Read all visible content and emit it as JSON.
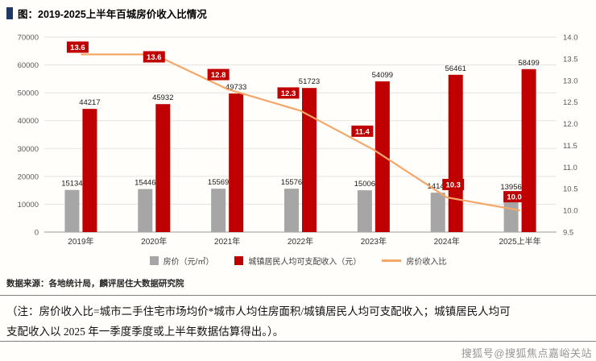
{
  "chart_data": {
    "type": "bar",
    "subtype": "bar-line-combo",
    "title": "图：2019-2025上半年百城房价收入比情况",
    "categories": [
      "2019年",
      "2020年",
      "2021年",
      "2022年",
      "2023年",
      "2024年",
      "2025上半年"
    ],
    "series": [
      {
        "name": "房价（元/㎡）",
        "type": "bar",
        "axis": "left",
        "color": "#a6a6a6",
        "values": [
          15134,
          15446,
          15569,
          15576,
          15006,
          14140,
          13956
        ]
      },
      {
        "name": "城镇居民人均可支配收入（元）",
        "type": "bar",
        "axis": "left",
        "color": "#c00000",
        "values": [
          44217,
          45932,
          49733,
          51723,
          54099,
          56461,
          58499
        ]
      },
      {
        "name": "房价收入比",
        "type": "line",
        "axis": "right",
        "color": "#f4a768",
        "values": [
          13.6,
          13.6,
          12.8,
          12.3,
          11.4,
          10.3,
          10.0
        ]
      }
    ],
    "left_axis": {
      "min": 0,
      "max": 70000,
      "step": 10000
    },
    "right_axis": {
      "min": 9.5,
      "max": 14.0,
      "step": 0.5,
      "decimals": 1
    },
    "grid": true,
    "legend_position": "bottom",
    "line_label_bg": "#c00000",
    "line_label_color": "#ffffff"
  },
  "source": "数据来源：各地统计局，麟评居住大数据研究院",
  "note": {
    "line1": "（注：房价收入比=城市二手住宅市场均价*城市人均住房面积/城镇居民人均可支配收入；城镇居民人均可",
    "line2": "支配收入以 2025 年一季度季度或上半年数据估算得出。）。"
  },
  "watermark": "搜狐号@搜狐焦点嘉峪关站",
  "theme": {
    "title_marker_color": "#1f3864",
    "background": "#fffefa",
    "divider_color": "#808080"
  }
}
